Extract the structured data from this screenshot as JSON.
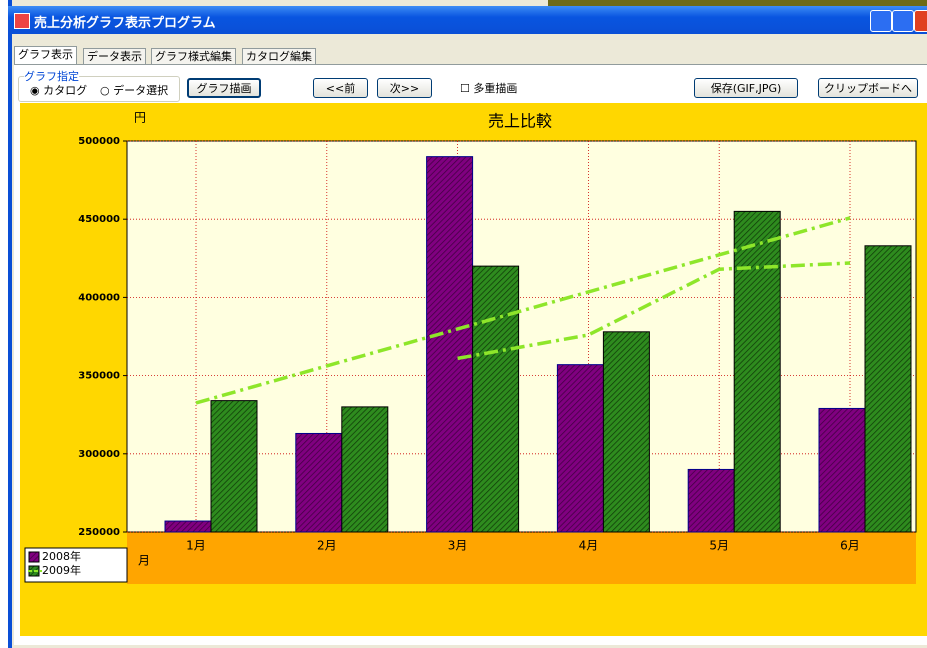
{
  "window": {
    "title": "売上分析グラフ表示プログラム"
  },
  "tabs": [
    "グラフ表示",
    "データ表示",
    "グラフ様式編集",
    "カタログ編集"
  ],
  "controls": {
    "group_label": "グラフ指定",
    "radio_catalog": "カタログ",
    "radio_data": "データ選択",
    "draw_button": "グラフ描画",
    "prev_button": "<<前",
    "next_button": "次>>",
    "multi_checkbox": "多重描画",
    "save_button": "保存(GIF,JPG)",
    "clipboard_button": "クリップボードへ"
  },
  "chart_data": {
    "type": "bar",
    "title": "売上比較",
    "y_label": "円",
    "x_label": "月",
    "categories": [
      "1月",
      "2月",
      "3月",
      "4月",
      "5月",
      "6月"
    ],
    "series": [
      {
        "name": "2008年",
        "color": "#800080",
        "values": [
          257000,
          313000,
          490000,
          357000,
          290000,
          329000
        ]
      },
      {
        "name": "2009年",
        "color": "#2e8b1e",
        "values": [
          334000,
          330000,
          420000,
          378000,
          455000,
          433000
        ]
      }
    ],
    "lines": [
      {
        "color": "#8ee62a",
        "values": [
          332500,
          356200,
          379800,
          403500,
          427200,
          450800
        ]
      },
      {
        "color": "#8ee62a",
        "values": [
          null,
          null,
          361000,
          376000,
          418000,
          422000
        ]
      }
    ],
    "ylim": [
      250000,
      500000
    ],
    "yticks": [
      250000,
      300000,
      350000,
      400000,
      450000,
      500000
    ],
    "grid": true
  }
}
